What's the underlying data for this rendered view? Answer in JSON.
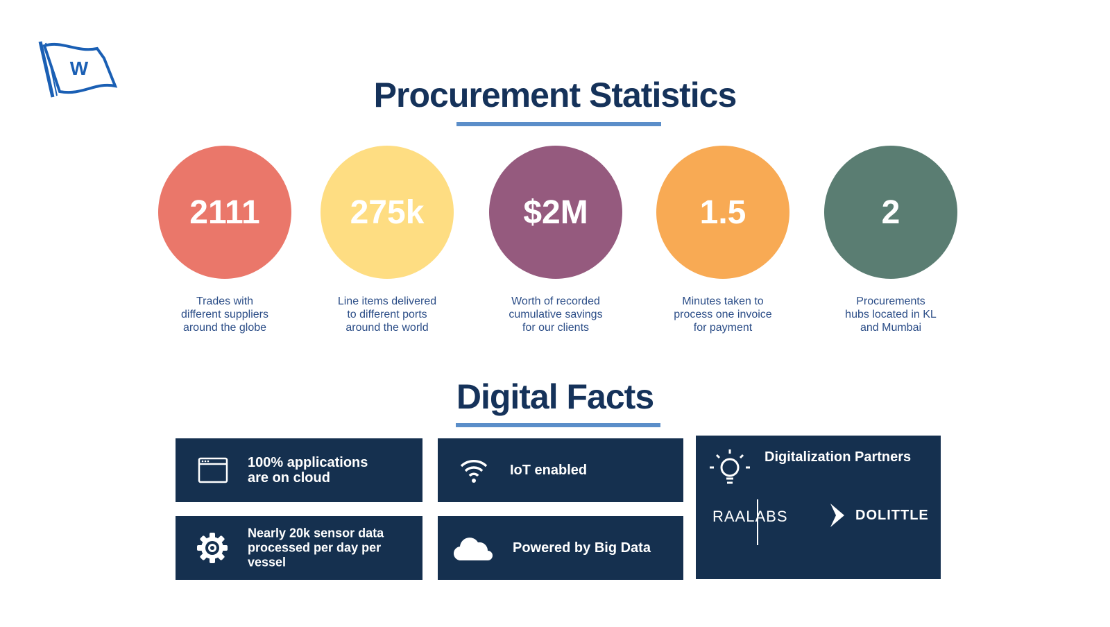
{
  "header": {
    "title": "Procurement Statistics"
  },
  "stats": [
    {
      "value": "2111",
      "color": "#ea776a",
      "lines": [
        "Trades with",
        "different suppliers",
        "around the globe"
      ]
    },
    {
      "value": "275k",
      "color": "#fedd82",
      "lines": [
        "Line items delivered",
        "to different ports",
        "around the world"
      ]
    },
    {
      "value": "$2M",
      "color": "#955a7e",
      "lines": [
        "Worth of recorded",
        "cumulative savings",
        "for our clients"
      ]
    },
    {
      "value": "1.5",
      "color": "#f8aa54",
      "lines": [
        "Minutes taken to",
        "process one invoice",
        "for payment"
      ]
    },
    {
      "value": "2",
      "color": "#5a7d72",
      "lines": [
        "Procurements",
        "hubs located in KL",
        "and Mumbai"
      ]
    }
  ],
  "facts": {
    "title": "Digital Facts",
    "items": [
      {
        "lines": [
          "100% applications",
          "are on cloud"
        ]
      },
      {
        "lines": [
          "IoT enabled"
        ]
      },
      {
        "lines": [
          "Nearly 20k sensor data",
          "processed per day per",
          "vessel"
        ]
      },
      {
        "lines": [
          "Powered by Big Data"
        ]
      }
    ],
    "partners": {
      "title": "Digitalization Partners",
      "names": [
        "RAALABS",
        "DOLITTLE"
      ]
    }
  }
}
